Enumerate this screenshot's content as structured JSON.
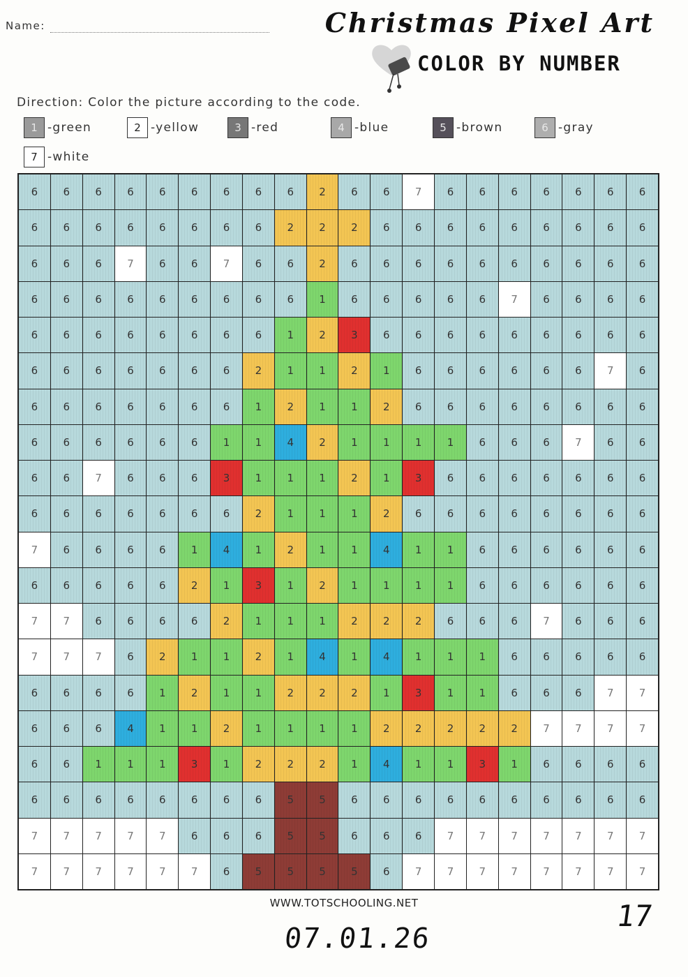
{
  "header": {
    "name_label": "Name:",
    "title": "Christmas Pixel Art",
    "subtitle": "COLOR BY NUMBER",
    "direction": "Direction: Color the picture according to the code."
  },
  "legend": [
    {
      "num": "1",
      "label": "-green",
      "color": "#9a9a9a"
    },
    {
      "num": "2",
      "label": "-yellow",
      "color": "#ffffff"
    },
    {
      "num": "3",
      "label": "-red",
      "color": "#777777"
    },
    {
      "num": "4",
      "label": "-blue",
      "color": "#a8a8a8"
    },
    {
      "num": "5",
      "label": "-brown",
      "color": "#55505a"
    },
    {
      "num": "6",
      "label": "-gray",
      "color": "#aeaeae"
    },
    {
      "num": "7",
      "label": "-white",
      "color": "#ffffff"
    }
  ],
  "palette": {
    "1": "#7ed66d",
    "2": "#f3c553",
    "3": "#e0302f",
    "4": "#2eaede",
    "5": "#8e3c36",
    "6": "#b7d9dc",
    "7": "#ffffff"
  },
  "grid": [
    "66666666626676666666",
    "66666666222666666666",
    "66676676626666666666",
    "66666666616666676666",
    "66666666123666666666",
    "66666662112166666676",
    "66666661211266666666",
    "66666611421111666766",
    "66766631112136666666",
    "66666662111266666666",
    "76666141211411666666",
    "66666213121111666666",
    "77666621112226667666",
    "77762112141411166666",
    "66661211222131166677",
    "66641121111222227777",
    "66111312221411316666",
    "66666666556666666666",
    "77777666556667777777",
    "77777765555677777777"
  ],
  "footer": {
    "website": "WWW.TOTSCHOOLING.NET",
    "handwritten_date": "07.01.26",
    "handwritten_number": "17"
  }
}
